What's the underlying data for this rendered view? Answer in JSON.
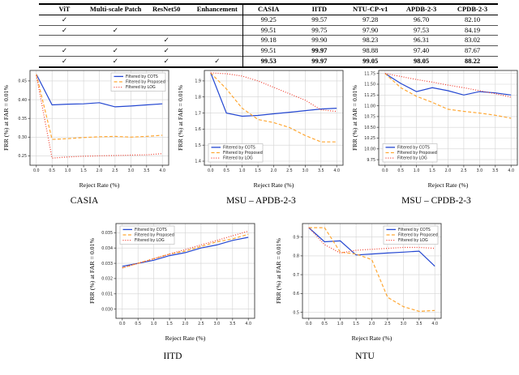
{
  "colors": {
    "cots_blue": "#2447d1",
    "proposed_orange": "#ffa733",
    "log_red": "#ef3b2c",
    "grid_gray": "#d3d3d3"
  },
  "table": {
    "check": "✓",
    "method_headers": [
      "ViT",
      "Multi-scale Patches",
      "ResNet50",
      "Enhancement"
    ],
    "dataset_headers": [
      "CASIA",
      "IITD",
      "NTU-CP-v1",
      "APDB-2-3",
      "CPDB-2-3"
    ],
    "rows": [
      {
        "checks": [
          true,
          false,
          false,
          false
        ],
        "values": [
          "99.25",
          "99.57",
          "97.28",
          "96.70",
          "82.10"
        ],
        "bold": [
          false,
          false,
          false,
          false,
          false
        ]
      },
      {
        "checks": [
          true,
          true,
          false,
          false
        ],
        "values": [
          "99.51",
          "99.75",
          "97.90",
          "97.53",
          "84.19"
        ],
        "bold": [
          false,
          false,
          false,
          false,
          false
        ]
      },
      {
        "checks": [
          false,
          false,
          true,
          false
        ],
        "values": [
          "99.18",
          "99.90",
          "98.23",
          "96.31",
          "83.02"
        ],
        "bold": [
          false,
          false,
          false,
          false,
          false
        ]
      },
      {
        "checks": [
          true,
          true,
          true,
          false
        ],
        "values": [
          "99.51",
          "99.97",
          "98.88",
          "97.40",
          "87.67"
        ],
        "bold": [
          false,
          true,
          false,
          false,
          false
        ]
      },
      {
        "checks": [
          true,
          true,
          true,
          true
        ],
        "values": [
          "99.53",
          "99.97",
          "99.05",
          "98.05",
          "88.22"
        ],
        "bold": [
          true,
          true,
          true,
          true,
          true
        ]
      }
    ]
  },
  "chart_data": [
    {
      "type": "line",
      "caption": "CASIA",
      "xlabel": "Reject Rate (%)",
      "ylabel": "FRR (%) at FAR = 0.01%",
      "x": [
        0,
        0.5,
        1,
        1.5,
        2,
        2.5,
        3,
        3.5,
        4
      ],
      "xticks": [
        "0.0",
        "0.5",
        "1.0",
        "1.5",
        "2.0",
        "2.5",
        "3.0",
        "3.5",
        "4.0"
      ],
      "xtick_vals": [
        0,
        0.5,
        1,
        1.5,
        2,
        2.5,
        3,
        3.5,
        4
      ],
      "xlim": [
        -0.2,
        4.2
      ],
      "ylim": [
        0.225,
        0.478
      ],
      "yticks": [
        "0.25",
        "0.30",
        "0.35",
        "0.40",
        "0.45"
      ],
      "ytick_vals": [
        0.25,
        0.3,
        0.35,
        0.4,
        0.45
      ],
      "legend_pos": "top-right",
      "grid": true,
      "series": [
        {
          "key": "cots",
          "name": "Filtered by COTS",
          "color": "#2447d1",
          "dash": "solid",
          "values": [
            0.468,
            0.386,
            0.388,
            0.389,
            0.392,
            0.381,
            0.383,
            0.386,
            0.389
          ]
        },
        {
          "key": "proposed",
          "name": "Filtered by Proposed",
          "color": "#ffa733",
          "dash": "dashed",
          "values": [
            0.468,
            0.294,
            0.296,
            0.299,
            0.301,
            0.302,
            0.3,
            0.302,
            0.305
          ]
        },
        {
          "key": "log",
          "name": "Filtered by LOG",
          "color": "#ef3b2c",
          "dash": "dotted",
          "values": [
            0.465,
            0.244,
            0.247,
            0.249,
            0.25,
            0.251,
            0.252,
            0.253,
            0.256
          ]
        }
      ]
    },
    {
      "type": "line",
      "caption": "MSU – APDB-2-3",
      "xlabel": "Reject Rate (%)",
      "ylabel": "FRR (%) at FAR = 0.01%",
      "x": [
        0,
        0.5,
        1,
        1.5,
        2,
        2.5,
        3,
        3.5,
        4
      ],
      "xticks": [
        "0.0",
        "0.5",
        "1.0",
        "1.5",
        "2.0",
        "2.5",
        "3.0",
        "3.5",
        "4.0"
      ],
      "xtick_vals": [
        0,
        0.5,
        1,
        1.5,
        2,
        2.5,
        3,
        3.5,
        4
      ],
      "xlim": [
        -0.2,
        4.2
      ],
      "ylim": [
        1.375,
        1.965
      ],
      "yticks": [
        "1.4",
        "1.5",
        "1.6",
        "1.7",
        "1.8",
        "1.9"
      ],
      "ytick_vals": [
        1.4,
        1.5,
        1.6,
        1.7,
        1.8,
        1.9
      ],
      "legend_pos": "bottom-left",
      "grid": true,
      "series": [
        {
          "key": "cots",
          "name": "Filtered by COTS",
          "color": "#2447d1",
          "dash": "solid",
          "values": [
            1.95,
            1.7,
            1.68,
            1.685,
            1.695,
            1.705,
            1.715,
            1.725,
            1.73
          ]
        },
        {
          "key": "proposed",
          "name": "Filtered by Proposed",
          "color": "#ffa733",
          "dash": "dashed",
          "values": [
            1.95,
            1.85,
            1.73,
            1.66,
            1.64,
            1.61,
            1.56,
            1.52,
            1.52
          ]
        },
        {
          "key": "log",
          "name": "Filtered by LOG",
          "color": "#ef3b2c",
          "dash": "dotted",
          "values": [
            1.95,
            1.945,
            1.93,
            1.9,
            1.86,
            1.82,
            1.78,
            1.72,
            1.71
          ]
        }
      ]
    },
    {
      "type": "line",
      "caption": "MSU – CPDB-2-3",
      "xlabel": "Reject Rate (%)",
      "ylabel": "FRR (%) at FAR = 0.01%",
      "x": [
        0,
        0.5,
        1,
        1.5,
        2,
        2.5,
        3,
        3.5,
        4
      ],
      "xticks": [
        "0.0",
        "0.5",
        "1.0",
        "1.5",
        "2.0",
        "2.5",
        "3.0",
        "3.5",
        "4.0"
      ],
      "xtick_vals": [
        0,
        0.5,
        1,
        1.5,
        2,
        2.5,
        3,
        3.5,
        4
      ],
      "xlim": [
        -0.2,
        4.2
      ],
      "ylim": [
        9.62,
        11.82
      ],
      "yticks": [
        "9.75",
        "10.00",
        "10.25",
        "10.50",
        "10.75",
        "11.00",
        "11.25",
        "11.50",
        "11.75"
      ],
      "ytick_vals": [
        9.75,
        10.0,
        10.25,
        10.5,
        10.75,
        11.0,
        11.25,
        11.5,
        11.75
      ],
      "legend_pos": "bottom-left",
      "grid": true,
      "series": [
        {
          "key": "cots",
          "name": "Filtered by COTS",
          "color": "#2447d1",
          "dash": "solid",
          "values": [
            11.75,
            11.52,
            11.33,
            11.42,
            11.35,
            11.25,
            11.33,
            11.3,
            11.25
          ]
        },
        {
          "key": "proposed",
          "name": "Filtered by Proposed",
          "color": "#ffa733",
          "dash": "dashed",
          "values": [
            11.75,
            11.42,
            11.22,
            11.08,
            10.92,
            10.87,
            10.83,
            10.78,
            10.71
          ]
        },
        {
          "key": "log",
          "name": "Filtered by LOG",
          "color": "#ef3b2c",
          "dash": "dotted",
          "values": [
            11.75,
            11.68,
            11.61,
            11.55,
            11.48,
            11.42,
            11.35,
            11.28,
            11.2
          ]
        }
      ]
    },
    {
      "type": "line",
      "caption": "IITD",
      "xlabel": "Reject Rate (%)",
      "ylabel": "FRR (%) at FAR = 0.01%",
      "x": [
        0,
        0.5,
        1,
        1.5,
        2,
        2.5,
        3,
        3.5,
        4
      ],
      "xticks": [
        "0.0",
        "0.5",
        "1.0",
        "1.5",
        "2.0",
        "2.5",
        "3.0",
        "3.5",
        "4.0"
      ],
      "xtick_vals": [
        0,
        0.5,
        1,
        1.5,
        2,
        2.5,
        3,
        3.5,
        4
      ],
      "xlim": [
        -0.2,
        4.2
      ],
      "ylim": [
        0.0294,
        0.0356
      ],
      "yticks": [
        "0.030",
        "0.031",
        "0.032",
        "0.033",
        "0.034",
        "0.035"
      ],
      "ytick_vals": [
        0.03,
        0.031,
        0.032,
        0.033,
        0.034,
        0.035
      ],
      "legend_pos": "top-left",
      "grid": true,
      "series": [
        {
          "key": "cots",
          "name": "Filtered by COTS",
          "color": "#2447d1",
          "dash": "solid",
          "values": [
            0.0328,
            0.033,
            0.0332,
            0.0335,
            0.0337,
            0.034,
            0.0342,
            0.0345,
            0.0347
          ]
        },
        {
          "key": "proposed",
          "name": "Filtered by Proposed",
          "color": "#ffa733",
          "dash": "dashed",
          "values": [
            0.0327,
            0.033,
            0.0333,
            0.0336,
            0.0338,
            0.0341,
            0.0344,
            0.0346,
            0.0349
          ]
        },
        {
          "key": "log",
          "name": "Filtered by LOG",
          "color": "#ef3b2c",
          "dash": "dotted",
          "values": [
            0.0327,
            0.033,
            0.0333,
            0.0336,
            0.0339,
            0.0342,
            0.0345,
            0.0348,
            0.0351
          ]
        }
      ]
    },
    {
      "type": "line",
      "caption": "NTU",
      "xlabel": "Reject Rate (%)",
      "ylabel": "FRR (%) at FAR = 0.01%",
      "x": [
        0,
        0.5,
        1,
        1.5,
        2,
        2.5,
        3,
        3.5,
        4
      ],
      "xticks": [
        "0.0",
        "0.5",
        "1.0",
        "1.5",
        "2.0",
        "2.5",
        "3.0",
        "3.5",
        "4.0"
      ],
      "xtick_vals": [
        0,
        0.5,
        1,
        1.5,
        2,
        2.5,
        3,
        3.5,
        4
      ],
      "xlim": [
        -0.2,
        4.2
      ],
      "ylim": [
        0.468,
        0.972
      ],
      "yticks": [
        "0.5",
        "0.6",
        "0.7",
        "0.8",
        "0.9"
      ],
      "ytick_vals": [
        0.5,
        0.6,
        0.7,
        0.8,
        0.9
      ],
      "legend_pos": "top-right",
      "grid": true,
      "series": [
        {
          "key": "cots",
          "name": "Filtered by COTS",
          "color": "#2447d1",
          "dash": "solid",
          "values": [
            0.95,
            0.875,
            0.88,
            0.805,
            0.81,
            0.815,
            0.82,
            0.825,
            0.745
          ]
        },
        {
          "key": "proposed",
          "name": "Filtered by Proposed",
          "color": "#ffa733",
          "dash": "dashed",
          "values": [
            0.95,
            0.95,
            0.82,
            0.81,
            0.78,
            0.58,
            0.53,
            0.505,
            0.51
          ]
        },
        {
          "key": "log",
          "name": "Filtered by LOG",
          "color": "#ef3b2c",
          "dash": "dotted",
          "values": [
            0.95,
            0.86,
            0.815,
            0.83,
            0.835,
            0.84,
            0.845,
            0.845,
            0.84
          ]
        }
      ]
    }
  ]
}
